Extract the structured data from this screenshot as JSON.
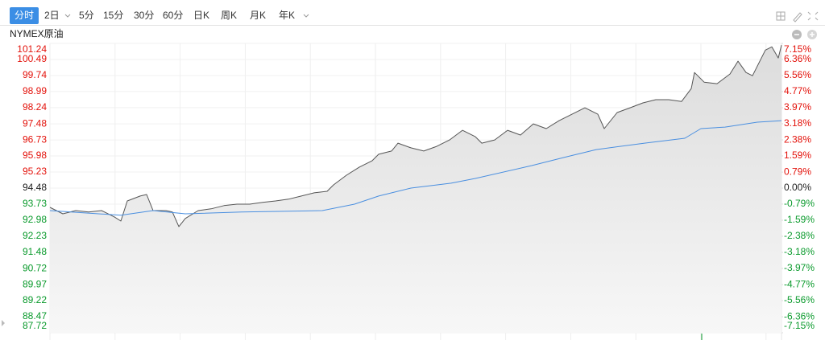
{
  "toolbar": {
    "tabs": [
      "分时",
      "2日",
      "5分",
      "15分",
      "30分",
      "60分",
      "日K",
      "周K",
      "月K",
      "年K"
    ],
    "active": 0
  },
  "chart_data": {
    "type": "line",
    "title": "NYMEX原油",
    "xlim": [
      0,
      908
    ],
    "ylim": [
      87.72,
      101.24
    ],
    "yticks": [
      87.72,
      88.47,
      89.22,
      89.97,
      90.72,
      91.48,
      92.23,
      92.98,
      93.73,
      94.48,
      95.23,
      95.98,
      96.73,
      97.48,
      98.24,
      98.99,
      99.74,
      100.49,
      101.24
    ],
    "y2lim": [
      -7.15,
      7.15
    ],
    "y2ticks": [
      {
        "value": -7.15,
        "label": "-7.15%"
      },
      {
        "value": -6.36,
        "label": "-6.36%"
      },
      {
        "value": -5.56,
        "label": "-5.56%"
      },
      {
        "value": -4.77,
        "label": "-4.77%"
      },
      {
        "value": -3.97,
        "label": "-3.97%"
      },
      {
        "value": -3.18,
        "label": "-3.18%"
      },
      {
        "value": -2.38,
        "label": "-2.38%"
      },
      {
        "value": -1.59,
        "label": "-1.59%"
      },
      {
        "value": -0.79,
        "label": "-0.79%"
      },
      {
        "value": 0,
        "label": "0.00%"
      },
      {
        "value": 0.79,
        "label": "0.79%"
      },
      {
        "value": 1.59,
        "label": "1.59%"
      },
      {
        "value": 2.38,
        "label": "2.38%"
      },
      {
        "value": 3.18,
        "label": "3.18%"
      },
      {
        "value": 3.97,
        "label": "3.97%"
      },
      {
        "value": 4.77,
        "label": "4.77%"
      },
      {
        "value": 5.56,
        "label": "5.56%"
      },
      {
        "value": 6.36,
        "label": "6.36%"
      },
      {
        "value": 7.15,
        "label": "7.15%"
      }
    ],
    "grid": true,
    "up_color": "#e3120b",
    "down_color": "#0a9a2c",
    "series": [
      {
        "color": "#555555",
        "fill": "#e6e6e6",
        "x": [
          0,
          16,
          32,
          48,
          64,
          80,
          88,
          96,
          112,
          120,
          128,
          144,
          152,
          160,
          168,
          184,
          200,
          216,
          232,
          248,
          264,
          280,
          296,
          312,
          328,
          344,
          352,
          368,
          384,
          400,
          408,
          424,
          432,
          448,
          464,
          480,
          496,
          512,
          528,
          536,
          552,
          568,
          584,
          600,
          616,
          632,
          648,
          664,
          680,
          688,
          704,
          720,
          736,
          752,
          768,
          784,
          796,
          800,
          812,
          828,
          844,
          854,
          864,
          872,
          888,
          896,
          904,
          908
        ],
        "values": [
          93.58,
          93.28,
          93.43,
          93.36,
          93.43,
          93.13,
          92.94,
          93.88,
          94.11,
          94.18,
          93.43,
          93.43,
          93.36,
          92.68,
          93.06,
          93.43,
          93.51,
          93.66,
          93.73,
          93.73,
          93.81,
          93.88,
          93.96,
          94.11,
          94.26,
          94.33,
          94.63,
          95.08,
          95.46,
          95.76,
          96.06,
          96.21,
          96.58,
          96.36,
          96.21,
          96.43,
          96.73,
          97.18,
          96.88,
          96.58,
          96.73,
          97.18,
          96.96,
          97.48,
          97.26,
          97.63,
          97.93,
          98.23,
          97.93,
          97.26,
          98.01,
          98.23,
          98.46,
          98.61,
          98.61,
          98.53,
          99.13,
          99.88,
          99.43,
          99.36,
          99.81,
          100.41,
          99.88,
          99.73,
          100.93,
          101.08,
          100.56,
          101.16
        ]
      },
      {
        "color": "#4a8fe0",
        "x": [
          0,
          88,
          128,
          168,
          238,
          338,
          378,
          408,
          448,
          498,
          528,
          598,
          638,
          678,
          738,
          788,
          808,
          838,
          878,
          908
        ],
        "values": [
          93.43,
          93.21,
          93.43,
          93.28,
          93.36,
          93.43,
          93.73,
          94.11,
          94.48,
          94.71,
          94.93,
          95.53,
          95.91,
          96.28,
          96.58,
          96.81,
          97.26,
          97.33,
          97.56,
          97.63
        ]
      }
    ]
  }
}
